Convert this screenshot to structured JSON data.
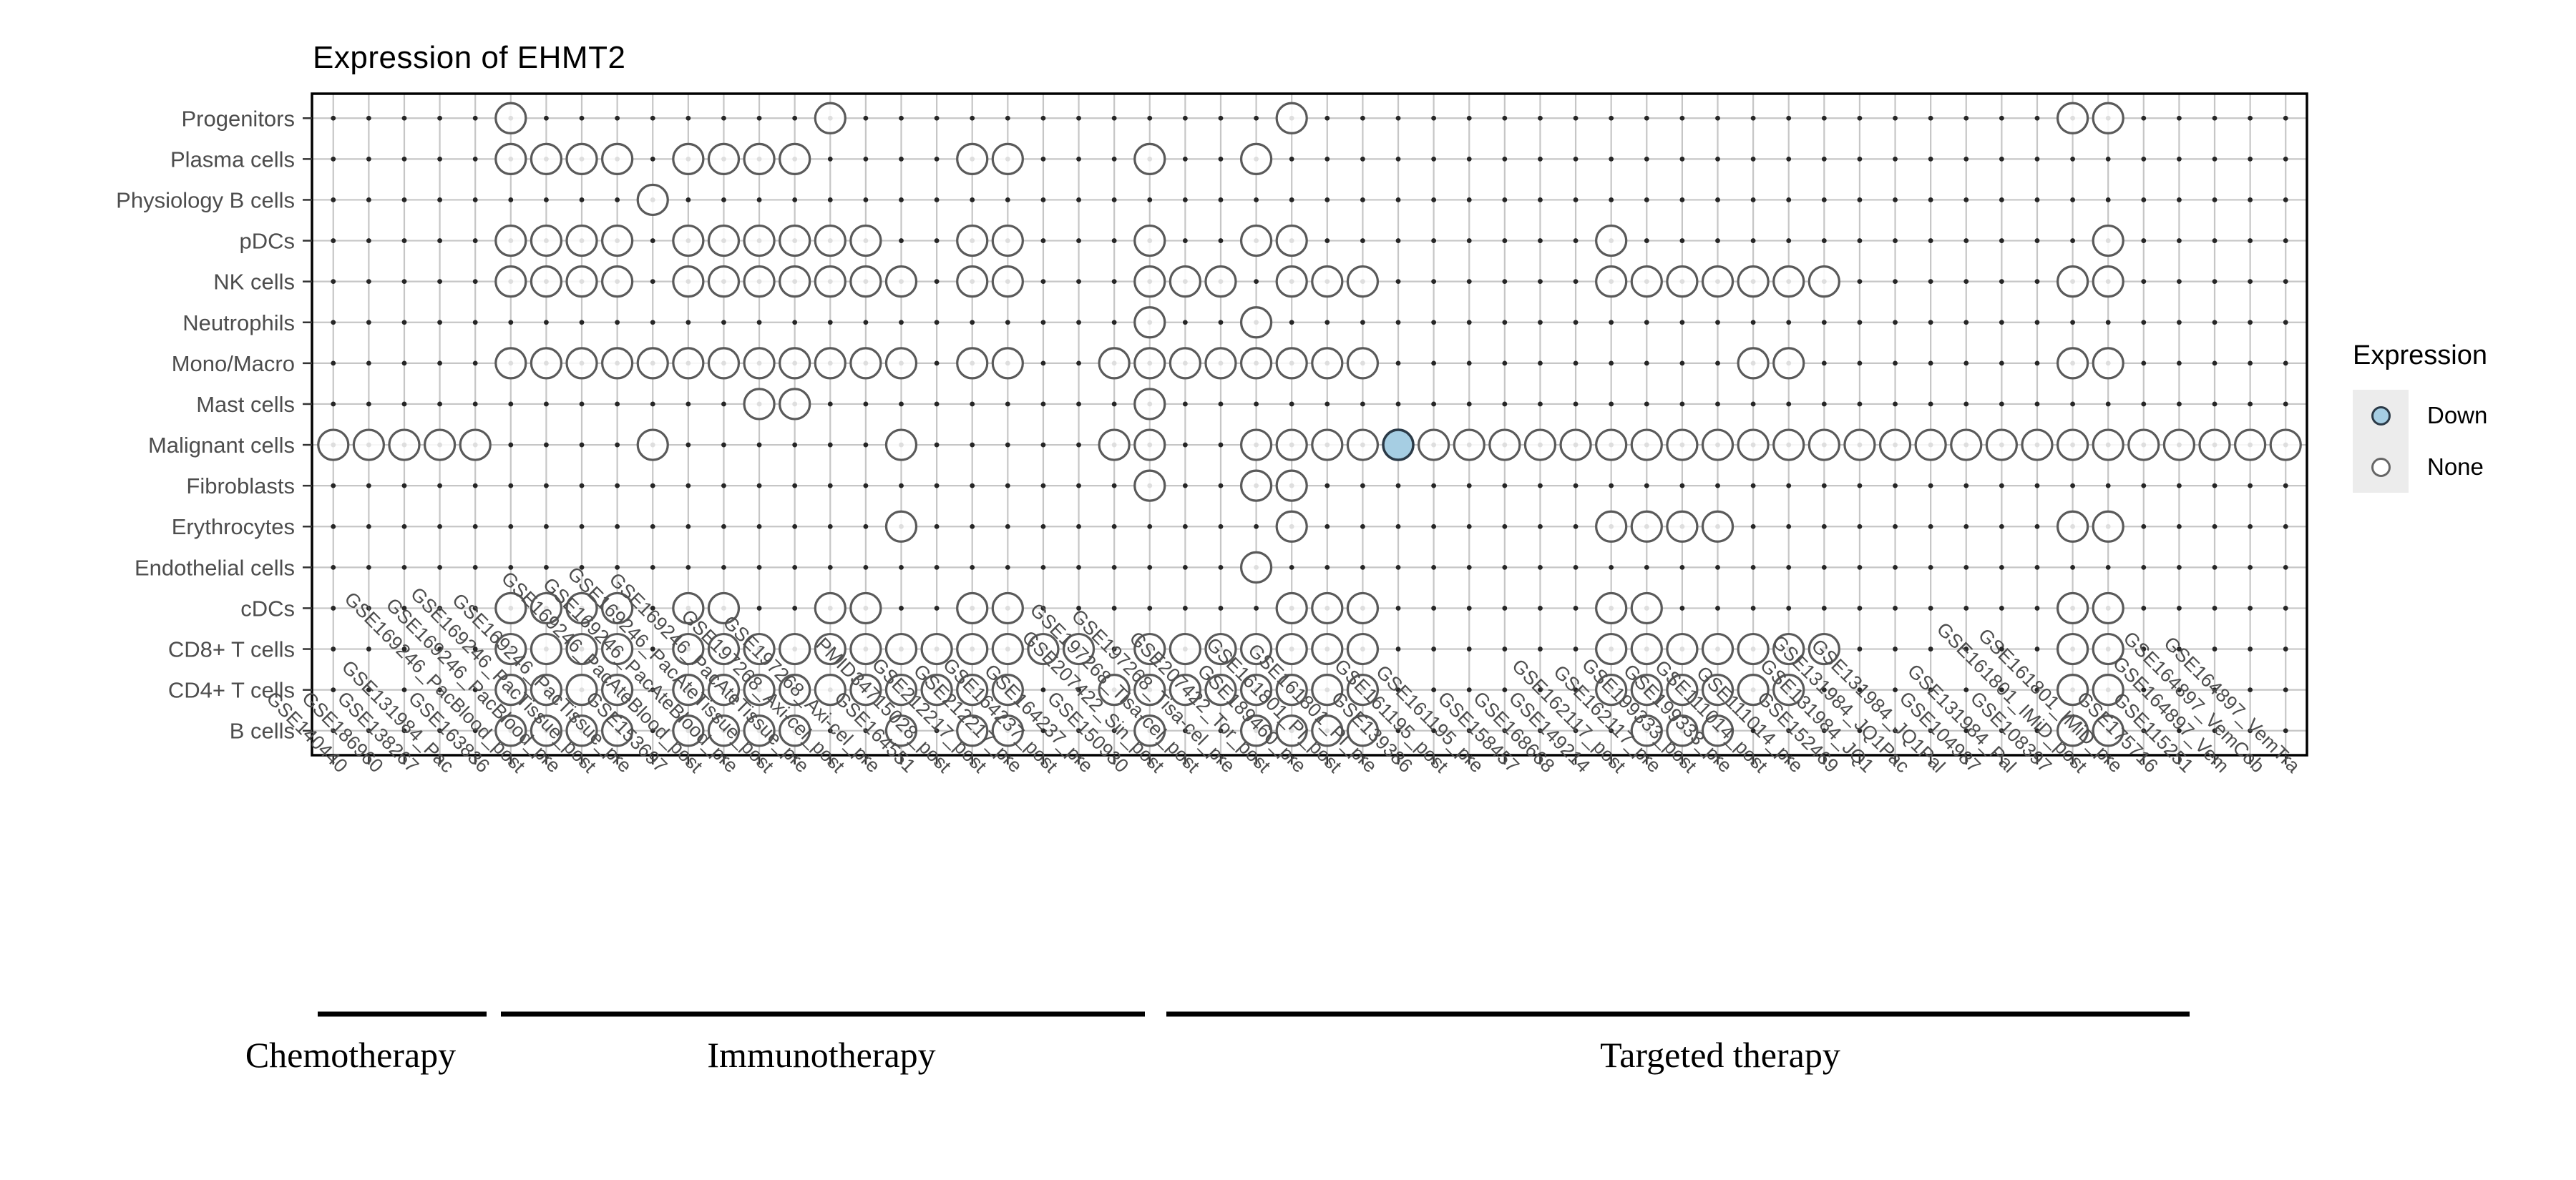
{
  "chart_data": {
    "type": "dot-matrix",
    "title": "Expression of EHMT2",
    "rows": [
      "Progenitors",
      "Plasma cells",
      "Physiology B cells",
      "pDCs",
      "NK cells",
      "Neutrophils",
      "Mono/Macro",
      "Mast cells",
      "Malignant cells",
      "Fibroblasts",
      "Erythrocytes",
      "Endothelial cells",
      "cDCs",
      "CD8+ T cells",
      "CD4+ T cells",
      "B cells"
    ],
    "columns": [
      "GSE140440",
      "GSE186960",
      "GSE138267",
      "GSE131984_Pac",
      "GSE163836",
      "GSE169246_PacBlood_post",
      "GSE169246_PacBlood_pre",
      "GSE169246_PacTissue_post",
      "GSE169246_PacTissue_pre",
      "GSE153697",
      "GSE169246_PacAteBlood_post",
      "GSE169246_PacAteBlood_pre",
      "GSE169246_PacAteTissue_post",
      "GSE169246_PacAteTissue_pre",
      "GSE197268_Axi-cel_post",
      "GSE197268_Axi-cel_pre",
      "GSE164551",
      "PMID34715028_post",
      "GSE212217_post",
      "GSE212217_pre",
      "GSE164237_post",
      "GSE164237_pre",
      "GSE150930",
      "GSE207422_Sin_post",
      "GSE197268_Tisa-cel_post",
      "GSE197268_Tisa-cel_pre",
      "GSE207422_Tor_post",
      "GSE189460_pre",
      "GSE161801_PI_post",
      "GSE161801_PI_pre",
      "GSE139386",
      "GSE161195_post",
      "GSE161195_pre",
      "GSE158457",
      "GSE168668",
      "GSE149214",
      "GSE162117_post",
      "GSE162117_pre",
      "GSE199333_post",
      "GSE199333_pre",
      "GSE111014_post",
      "GSE111014_pre",
      "GSE152469",
      "GSE131984_JQ1",
      "GSE131984_JQ1Pac",
      "GSE131984_JQ1Pal",
      "GSE104987",
      "GSE131984_Pal",
      "GSE108397",
      "GSE161801_IMiD_post",
      "GSE161801_IMiD_pre",
      "GSE175716",
      "GSE115251",
      "GSE164897_Vem",
      "GSE164897_VemCob",
      "GSE164897_VemTra"
    ],
    "groups": [
      {
        "label": "Chemotherapy",
        "start": 0,
        "end": 4
      },
      {
        "label": "Immunotherapy",
        "start": 5,
        "end": 22
      },
      {
        "label": "Targeted therapy",
        "start": 23,
        "end": 55
      }
    ],
    "presence_none": [
      [
        5,
        14,
        27,
        49,
        50
      ],
      [
        5,
        6,
        7,
        8,
        10,
        11,
        12,
        13,
        18,
        19,
        23,
        26
      ],
      [
        9
      ],
      [
        5,
        6,
        7,
        8,
        10,
        11,
        12,
        13,
        14,
        15,
        18,
        19,
        23,
        26,
        27,
        36,
        50
      ],
      [
        5,
        6,
        7,
        8,
        10,
        11,
        12,
        13,
        14,
        15,
        16,
        18,
        19,
        23,
        24,
        25,
        27,
        28,
        29,
        36,
        37,
        38,
        39,
        40,
        41,
        42,
        49,
        50
      ],
      [
        23,
        26
      ],
      [
        5,
        6,
        7,
        8,
        9,
        10,
        11,
        12,
        13,
        14,
        15,
        16,
        18,
        19,
        22,
        23,
        24,
        25,
        26,
        27,
        28,
        29,
        40,
        41,
        49,
        50
      ],
      [
        12,
        13,
        23
      ],
      [
        0,
        1,
        2,
        3,
        4,
        9,
        16,
        22,
        23,
        26,
        27,
        28,
        29,
        31,
        32,
        33,
        34,
        35,
        36,
        37,
        38,
        39,
        40,
        41,
        42,
        43,
        44,
        45,
        46,
        47,
        48,
        49,
        50,
        51,
        52,
        53,
        54,
        55
      ],
      [
        23,
        26,
        27
      ],
      [
        16,
        27,
        36,
        37,
        38,
        39,
        49,
        50
      ],
      [
        26
      ],
      [
        5,
        6,
        7,
        8,
        10,
        11,
        14,
        15,
        18,
        19,
        27,
        28,
        29,
        36,
        37,
        49,
        50
      ],
      [
        5,
        6,
        7,
        8,
        10,
        11,
        12,
        13,
        14,
        15,
        16,
        17,
        18,
        19,
        20,
        21,
        23,
        24,
        25,
        26,
        27,
        28,
        29,
        36,
        37,
        38,
        39,
        40,
        41,
        42,
        49,
        50
      ],
      [
        5,
        6,
        7,
        8,
        10,
        11,
        12,
        13,
        14,
        15,
        16,
        17,
        18,
        19,
        22,
        23,
        24,
        25,
        26,
        27,
        28,
        29,
        36,
        37,
        38,
        39,
        40,
        41,
        49,
        50
      ],
      [
        5,
        6,
        7,
        8,
        10,
        11,
        12,
        13,
        16,
        18,
        19,
        23,
        26,
        27,
        28,
        29,
        37,
        38,
        39,
        49,
        50
      ]
    ],
    "presence_down": [
      [
        8,
        30
      ]
    ],
    "legend": {
      "title": "Expression",
      "items": [
        {
          "label": "Down",
          "color": "#a6cee3"
        },
        {
          "label": "None",
          "color": "#ffffff"
        }
      ]
    }
  }
}
